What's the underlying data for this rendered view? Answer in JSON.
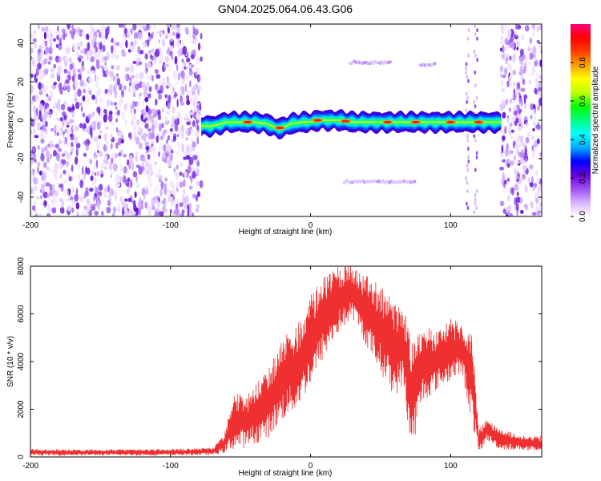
{
  "page_title": "GN04.2025.064.06.43.G06",
  "chart_data": [
    {
      "type": "heatmap",
      "title": "GN04.2025.064.06.43.G06",
      "xlabel": "Height of straight line (km)",
      "ylabel": "Frequency (Hz)",
      "xlim": [
        -200,
        165
      ],
      "ylim": [
        -50,
        50
      ],
      "xticks": [
        -200,
        -100,
        0,
        100
      ],
      "yticks": [
        -40,
        -20,
        0,
        20,
        40
      ],
      "colorbar": {
        "label": "Normalized spectral amplitude",
        "range": [
          0,
          1
        ],
        "ticks": [
          0.0,
          0.2,
          0.4,
          0.6,
          0.8
        ],
        "colors": [
          "#ffffff",
          "#d9b3ff",
          "#a050f0",
          "#6a00d8",
          "#0000ff",
          "#00aaff",
          "#00ffff",
          "#00ff80",
          "#00ff00",
          "#c0ff00",
          "#ffff00",
          "#ffa000",
          "#ff4000",
          "#ff0000",
          "#ff0080"
        ]
      },
      "signal_band": {
        "x_range": [
          -78,
          136
        ],
        "center_freq": [
          [
            -78,
            -3
          ],
          [
            -70,
            -3
          ],
          [
            -60,
            -1
          ],
          [
            -50,
            -1
          ],
          [
            -40,
            -1
          ],
          [
            -30,
            -2
          ],
          [
            -25,
            -4
          ],
          [
            -20,
            -4
          ],
          [
            -15,
            -2
          ],
          [
            -5,
            -1
          ],
          [
            0,
            -1
          ],
          [
            5,
            0
          ],
          [
            10,
            0
          ],
          [
            20,
            0
          ],
          [
            30,
            -1
          ],
          [
            40,
            -1
          ],
          [
            50,
            -1
          ],
          [
            60,
            -1
          ],
          [
            70,
            -1
          ],
          [
            80,
            -1
          ],
          [
            90,
            -1
          ],
          [
            100,
            -1
          ],
          [
            110,
            -1
          ],
          [
            120,
            -1
          ],
          [
            130,
            -1
          ],
          [
            136,
            -1
          ]
        ],
        "peak_x": [
          -45,
          -22,
          5,
          25,
          55,
          75,
          100,
          120
        ]
      },
      "noise_regions": [
        [
          -200,
          -78
        ],
        [
          136,
          165
        ]
      ],
      "artifacts": [
        {
          "x": [
            28,
            58
          ],
          "freq": 30
        },
        {
          "x": [
            78,
            90
          ],
          "freq": 29
        },
        {
          "x": [
            24,
            75
          ],
          "freq": -32
        }
      ],
      "vertical_streaks": [
        112,
        118
      ]
    },
    {
      "type": "line",
      "xlabel": "Height of straight line (km)",
      "ylabel": "SNR (10 * v/v)",
      "xlim": [
        -200,
        165
      ],
      "ylim": [
        0,
        8000
      ],
      "xticks": [
        -200,
        -100,
        0,
        100
      ],
      "yticks": [
        0,
        2000,
        4000,
        6000,
        8000
      ],
      "color": "#f03030",
      "envelope": [
        {
          "x": -200,
          "low": 60,
          "high": 330
        },
        {
          "x": -150,
          "low": 60,
          "high": 320
        },
        {
          "x": -100,
          "low": 60,
          "high": 330
        },
        {
          "x": -70,
          "low": 80,
          "high": 400
        },
        {
          "x": -62,
          "low": 150,
          "high": 900
        },
        {
          "x": -55,
          "low": 300,
          "high": 2800
        },
        {
          "x": -45,
          "low": 400,
          "high": 2600
        },
        {
          "x": -30,
          "low": 800,
          "high": 3800
        },
        {
          "x": -20,
          "low": 1500,
          "high": 5200
        },
        {
          "x": -10,
          "low": 2000,
          "high": 5500
        },
        {
          "x": 0,
          "low": 3000,
          "high": 6800
        },
        {
          "x": 10,
          "low": 4200,
          "high": 7600
        },
        {
          "x": 20,
          "low": 5200,
          "high": 8000
        },
        {
          "x": 30,
          "low": 5800,
          "high": 8000
        },
        {
          "x": 40,
          "low": 4600,
          "high": 7600
        },
        {
          "x": 50,
          "low": 3500,
          "high": 7200
        },
        {
          "x": 60,
          "low": 2500,
          "high": 6500
        },
        {
          "x": 66,
          "low": 3000,
          "high": 6400
        },
        {
          "x": 72,
          "low": 200,
          "high": 5000
        },
        {
          "x": 80,
          "low": 2300,
          "high": 5500
        },
        {
          "x": 90,
          "low": 2800,
          "high": 5300
        },
        {
          "x": 100,
          "low": 3200,
          "high": 5800
        },
        {
          "x": 108,
          "low": 3500,
          "high": 5600
        },
        {
          "x": 116,
          "low": 1200,
          "high": 5200
        },
        {
          "x": 120,
          "low": 100,
          "high": 1200
        },
        {
          "x": 126,
          "low": 700,
          "high": 1600
        },
        {
          "x": 135,
          "low": 300,
          "high": 1200
        },
        {
          "x": 150,
          "low": 300,
          "high": 900
        },
        {
          "x": 165,
          "low": 150,
          "high": 900
        }
      ]
    }
  ]
}
